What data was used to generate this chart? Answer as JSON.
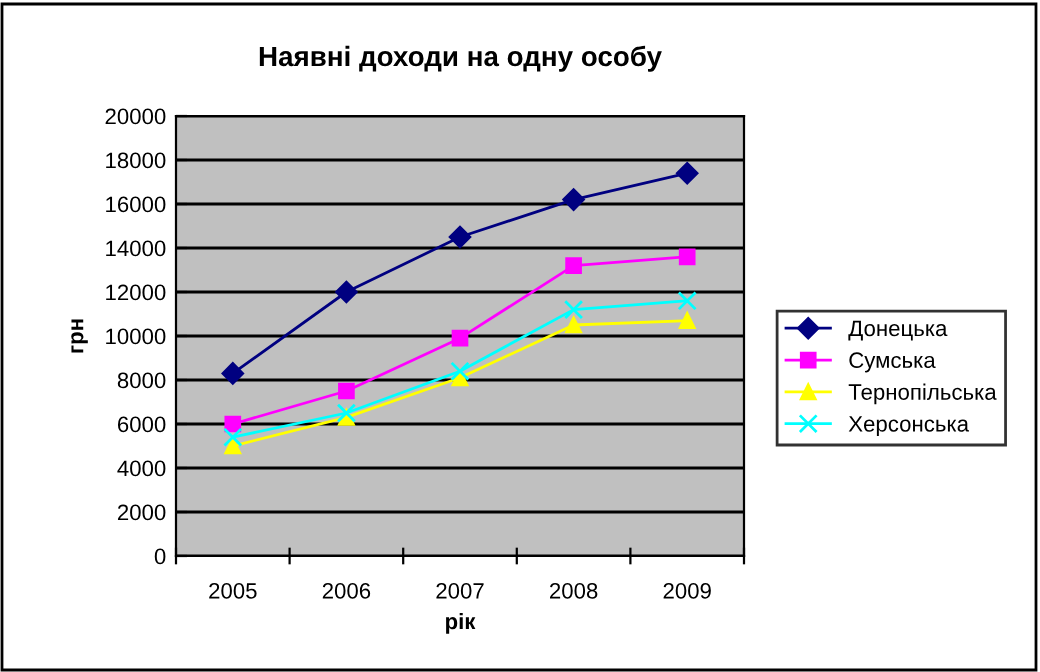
{
  "chart_data": {
    "type": "line",
    "title": "Наявні доходи на одну особу",
    "xlabel": "рік",
    "ylabel": "грн",
    "categories": [
      "2005",
      "2006",
      "2007",
      "2008",
      "2009"
    ],
    "series": [
      {
        "name": "Донецька",
        "color": "#000080",
        "marker": "diamond",
        "values": [
          8300,
          12000,
          14500,
          16200,
          17400
        ]
      },
      {
        "name": "Сумська",
        "color": "#ff00ff",
        "marker": "square",
        "values": [
          6000,
          7500,
          9900,
          13200,
          13600
        ]
      },
      {
        "name": "Тернопільська",
        "color": "#ffff00",
        "marker": "triangle",
        "values": [
          5000,
          6300,
          8100,
          10500,
          10700
        ]
      },
      {
        "name": "Херсонська",
        "color": "#00ffff",
        "marker": "cross",
        "values": [
          5400,
          6500,
          8400,
          11200,
          11600
        ]
      }
    ],
    "ylim": [
      0,
      20000
    ],
    "yticks": [
      0,
      2000,
      4000,
      6000,
      8000,
      10000,
      12000,
      14000,
      16000,
      18000,
      20000
    ],
    "grid": "y",
    "legend": "right"
  }
}
